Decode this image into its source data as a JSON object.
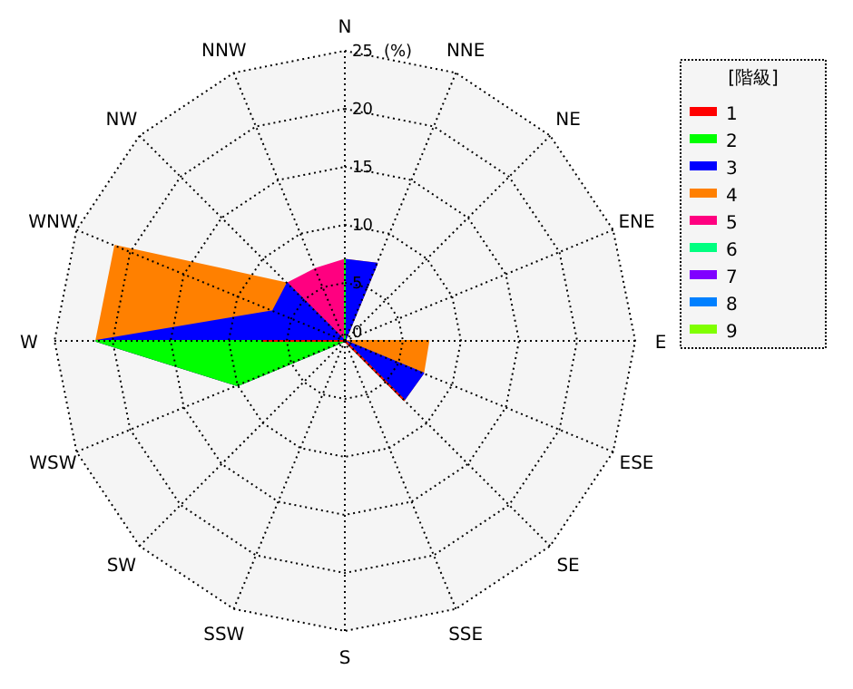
{
  "chart_data": {
    "type": "radar",
    "categories": [
      "N",
      "NNE",
      "NE",
      "ENE",
      "E",
      "ESE",
      "SE",
      "SSE",
      "S",
      "SSW",
      "SW",
      "WSW",
      "W",
      "WNW",
      "NW",
      "NNW"
    ],
    "series": [
      {
        "name": "1",
        "color": "#ff0000",
        "values": [
          0,
          0,
          0,
          0,
          0,
          0,
          7.2,
          0,
          0,
          0,
          0,
          0,
          7.0,
          0,
          0,
          0
        ]
      },
      {
        "name": "2",
        "color": "#00ff00",
        "values": [
          7.0,
          0,
          0,
          0,
          0,
          0,
          7.2,
          0,
          0,
          0,
          0,
          10,
          21.4,
          0,
          0,
          0
        ]
      },
      {
        "name": "3",
        "color": "#0000ff",
        "values": [
          7.0,
          7.2,
          0,
          0,
          0,
          7.3,
          7.2,
          0,
          0,
          0,
          0,
          10,
          21.4,
          6.7,
          7.0,
          0
        ]
      },
      {
        "name": "4",
        "color": "#ff8000",
        "values": [
          7.0,
          7.2,
          0,
          0,
          7.2,
          7.3,
          7.2,
          0,
          0,
          0,
          0,
          10,
          21.4,
          21.4,
          7.0,
          0
        ]
      },
      {
        "name": "5",
        "color": "#ff0080",
        "values": [
          7.0,
          0,
          0,
          0,
          0,
          0,
          0,
          0,
          0,
          0,
          0,
          0,
          0,
          0,
          7.0,
          6.7
        ]
      },
      {
        "name": "6",
        "color": "#00ff80",
        "values": [
          null,
          null,
          null,
          null,
          null,
          null,
          null,
          null,
          null,
          null,
          null,
          null,
          null,
          null,
          null,
          null
        ]
      },
      {
        "name": "7",
        "color": "#8000ff",
        "values": [
          null,
          null,
          null,
          null,
          null,
          null,
          null,
          null,
          null,
          null,
          null,
          null,
          null,
          null,
          null,
          null
        ]
      },
      {
        "name": "8",
        "color": "#0080ff",
        "values": [
          null,
          null,
          null,
          null,
          null,
          null,
          null,
          null,
          null,
          null,
          null,
          null,
          null,
          null,
          null,
          null
        ]
      },
      {
        "name": "9",
        "color": "#80ff00",
        "values": [
          null,
          null,
          null,
          null,
          null,
          null,
          null,
          null,
          null,
          null,
          null,
          null,
          null,
          null,
          null,
          null
        ]
      }
    ],
    "ylim": [
      0,
      25
    ],
    "yticks": [
      0,
      5,
      10,
      15,
      20,
      25
    ],
    "ylabel": "(%)",
    "grid": true,
    "legend": "right",
    "legend_title": "[階級]"
  }
}
